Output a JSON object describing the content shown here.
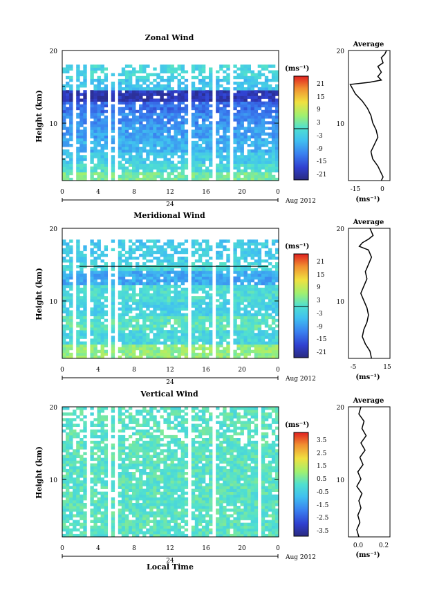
{
  "chart_data": [
    {
      "type": "heatmap",
      "title": "Zonal Wind",
      "xlabel": "",
      "ylabel": "Height (km)",
      "x_ticks": [
        "0",
        "4",
        "8",
        "12",
        "16",
        "20",
        "0"
      ],
      "y_ticks": [
        "10",
        "20"
      ],
      "xlim": [
        0,
        24
      ],
      "ylim": [
        2,
        20
      ],
      "day_marker": "24",
      "date_label": "Aug 2012",
      "colorbar": {
        "unit_label": "(ms⁻¹)",
        "ticks": [
          "21",
          "15",
          "9",
          "3",
          "-3",
          "-9",
          "-15",
          "-21"
        ],
        "range": [
          -24,
          24
        ]
      },
      "profile": {
        "title": "Average",
        "x_ticks": [
          "-15",
          "0"
        ],
        "xlim": [
          -20,
          4
        ],
        "unit_label": "(ms⁻¹)",
        "y_ticks": [
          "10",
          "20"
        ],
        "points": [
          [
            -1,
            2
          ],
          [
            0,
            2.5
          ],
          [
            -1,
            3
          ],
          [
            -3,
            4
          ],
          [
            -6,
            5
          ],
          [
            -7,
            6
          ],
          [
            -5,
            7
          ],
          [
            -3,
            8
          ],
          [
            -4,
            9
          ],
          [
            -6,
            10
          ],
          [
            -7,
            11
          ],
          [
            -9,
            12
          ],
          [
            -12,
            13
          ],
          [
            -16,
            14
          ],
          [
            -19,
            15.3
          ],
          [
            -8,
            15.6
          ],
          [
            -1,
            15.9
          ],
          [
            -3,
            16.4
          ],
          [
            -1,
            17
          ],
          [
            -3,
            17.8
          ],
          [
            0,
            18.3
          ],
          [
            -1,
            19
          ],
          [
            1,
            19.5
          ],
          [
            2,
            20
          ]
        ]
      },
      "field": {
        "levels": [
          {
            "from": 2,
            "to": 3.2,
            "value": 3
          },
          {
            "from": 3.2,
            "to": 4.5,
            "value": -1
          },
          {
            "from": 4.5,
            "to": 6,
            "value": -4
          },
          {
            "from": 6,
            "to": 8,
            "value": -7
          },
          {
            "from": 8,
            "to": 10,
            "value": -9
          },
          {
            "from": 10,
            "to": 11.5,
            "value": -11
          },
          {
            "from": 11.5,
            "to": 13,
            "value": -14
          },
          {
            "from": 13,
            "to": 14.5,
            "value": -20
          },
          {
            "from": 14.5,
            "to": 16,
            "value": -5
          },
          {
            "from": 16,
            "to": 20,
            "value": -2
          }
        ],
        "gaps_hours": [
          [
            1,
            1.5
          ],
          [
            2.8,
            3.1
          ],
          [
            5,
            5.5
          ],
          [
            5.8,
            6.1
          ],
          [
            13.9,
            14.3
          ],
          [
            16.6,
            17
          ],
          [
            17.3,
            17.6
          ],
          [
            18.5,
            18.8
          ],
          [
            22.3,
            22.6
          ]
        ],
        "data_top_km": 17.5
      }
    },
    {
      "type": "heatmap",
      "title": "Meridional Wind",
      "xlabel": "",
      "ylabel": "Height (km)",
      "x_ticks": [
        "0",
        "4",
        "8",
        "12",
        "16",
        "20",
        "0"
      ],
      "y_ticks": [
        "10",
        "20"
      ],
      "xlim": [
        0,
        24
      ],
      "ylim": [
        2,
        20
      ],
      "day_marker": "24",
      "date_label": "Aug 2012",
      "colorbar": {
        "unit_label": "(ms⁻¹)",
        "ticks": [
          "21",
          "15",
          "9",
          "3",
          "-3",
          "-9",
          "-15",
          "-21"
        ],
        "range": [
          -24,
          24
        ]
      },
      "profile": {
        "title": "Average",
        "x_ticks": [
          "-5",
          "15"
        ],
        "xlim": [
          -10,
          17
        ],
        "unit_label": "(ms⁻¹)",
        "y_ticks": [
          "10",
          "20"
        ],
        "points": [
          [
            5,
            2
          ],
          [
            4,
            3
          ],
          [
            1,
            4
          ],
          [
            -1,
            5
          ],
          [
            0,
            6
          ],
          [
            2,
            7
          ],
          [
            3,
            8
          ],
          [
            2,
            9
          ],
          [
            0,
            10
          ],
          [
            -2,
            11
          ],
          [
            0,
            12
          ],
          [
            2,
            13
          ],
          [
            1,
            14
          ],
          [
            3,
            15
          ],
          [
            5,
            16
          ],
          [
            3,
            17
          ],
          [
            -3,
            17.5
          ],
          [
            -1,
            18
          ],
          [
            3,
            18.5
          ],
          [
            6,
            19
          ],
          [
            4,
            20
          ]
        ]
      },
      "field": {
        "levels": [
          {
            "from": 2,
            "to": 4,
            "value": 5
          },
          {
            "from": 4,
            "to": 6,
            "value": -2
          },
          {
            "from": 6,
            "to": 8,
            "value": 1
          },
          {
            "from": 8,
            "to": 10,
            "value": -3
          },
          {
            "from": 10,
            "to": 12,
            "value": -1
          },
          {
            "from": 12,
            "to": 14,
            "value": -8
          },
          {
            "from": 14,
            "to": 15.5,
            "value": -2
          },
          {
            "from": 15.5,
            "to": 20,
            "value": -4
          }
        ],
        "gaps_hours": [
          [
            1,
            1.5
          ],
          [
            2.8,
            3.1
          ],
          [
            5,
            5.5
          ],
          [
            5.8,
            6.1
          ],
          [
            13.9,
            14.3
          ],
          [
            16.6,
            17
          ],
          [
            17.3,
            17.6
          ],
          [
            18.5,
            18.8
          ],
          [
            22.3,
            22.6
          ]
        ],
        "data_top_km": 17.5
      }
    },
    {
      "type": "heatmap",
      "title": "Vertical Wind",
      "xlabel": "Local Time",
      "ylabel": "Height (km)",
      "x_ticks": [
        "0",
        "4",
        "8",
        "12",
        "16",
        "20",
        "0"
      ],
      "y_ticks": [
        "10",
        "20"
      ],
      "xlim": [
        0,
        24
      ],
      "ylim": [
        2,
        20
      ],
      "day_marker": "24",
      "date_label": "Aug 2012",
      "colorbar": {
        "unit_label": "(ms⁻¹)",
        "ticks": [
          "3.5",
          "2.5",
          "1.5",
          "0.5",
          "-0.5",
          "-1.5",
          "-2.5",
          "-3.5"
        ],
        "range": [
          -4,
          4
        ]
      },
      "profile": {
        "title": "Average",
        "x_ticks": [
          "0.0",
          "0.2"
        ],
        "xlim": [
          -0.1,
          0.3
        ],
        "unit_label": "(ms⁻¹)",
        "y_ticks": [
          "10",
          "20"
        ],
        "points": [
          [
            0,
            2
          ],
          [
            -0.02,
            3
          ],
          [
            0.01,
            4
          ],
          [
            -0.01,
            5
          ],
          [
            0.02,
            6
          ],
          [
            0,
            7
          ],
          [
            0.03,
            8
          ],
          [
            -0.02,
            9
          ],
          [
            0.02,
            10
          ],
          [
            -0.01,
            11
          ],
          [
            0.04,
            12
          ],
          [
            0.01,
            13
          ],
          [
            0.06,
            14
          ],
          [
            0.02,
            15
          ],
          [
            0.07,
            16
          ],
          [
            0.03,
            17
          ],
          [
            0.05,
            18
          ],
          [
            0,
            19
          ],
          [
            0.02,
            20
          ]
        ]
      },
      "field": {
        "levels": [
          {
            "from": 2,
            "to": 20,
            "value": 0.1
          }
        ],
        "gaps_hours": [
          [
            0.6,
            0.9
          ],
          [
            2.7,
            3.1
          ],
          [
            4.9,
            5.3
          ],
          [
            5.8,
            6.1
          ],
          [
            13.8,
            14.3
          ],
          [
            16.5,
            16.9
          ],
          [
            17.3,
            17.6
          ],
          [
            21.6,
            22
          ]
        ],
        "data_top_km": 20
      }
    }
  ]
}
